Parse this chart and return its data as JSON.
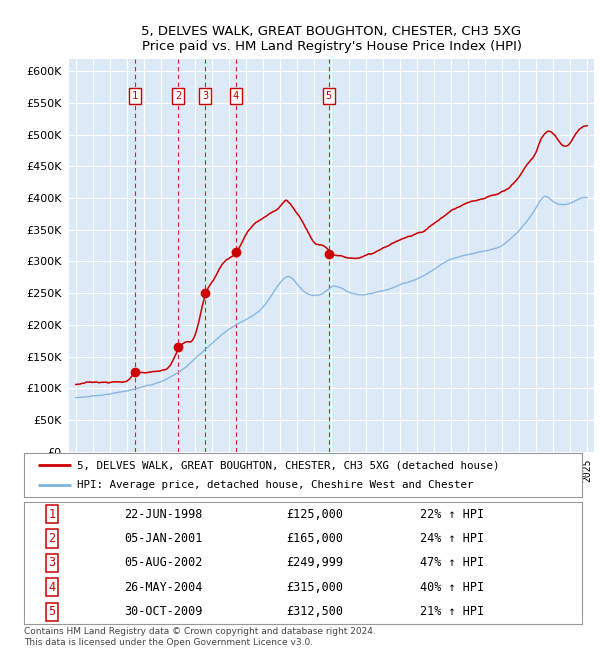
{
  "title": "5, DELVES WALK, GREAT BOUGHTON, CHESTER, CH3 5XG",
  "subtitle": "Price paid vs. HM Land Registry's House Price Index (HPI)",
  "ylim": [
    0,
    620000
  ],
  "yticks": [
    0,
    50000,
    100000,
    150000,
    200000,
    250000,
    300000,
    350000,
    400000,
    450000,
    500000,
    550000,
    600000
  ],
  "xlim_start": 1994.6,
  "xlim_end": 2025.4,
  "plot_bg_color": "#dce9f7",
  "grid_color": "#ffffff",
  "sale_color": "#cc0000",
  "hpi_color": "#7fb3e0",
  "sale_label": "5, DELVES WALK, GREAT BOUGHTON, CHESTER, CH3 5XG (detached house)",
  "hpi_label": "HPI: Average price, detached house, Cheshire West and Chester",
  "footer": "Contains HM Land Registry data © Crown copyright and database right 2024.\nThis data is licensed under the Open Government Licence v3.0.",
  "sales": [
    {
      "num": 1,
      "date": "22-JUN-1998",
      "price": 125000,
      "x_year": 1998.47
    },
    {
      "num": 2,
      "date": "05-JAN-2001",
      "price": 165000,
      "x_year": 2001.01
    },
    {
      "num": 3,
      "date": "05-AUG-2002",
      "price": 249999,
      "x_year": 2002.59
    },
    {
      "num": 4,
      "date": "26-MAY-2004",
      "price": 315000,
      "x_year": 2004.4
    },
    {
      "num": 5,
      "date": "30-OCT-2009",
      "price": 312500,
      "x_year": 2009.83
    }
  ],
  "table_rows": [
    [
      "1",
      "22-JUN-1998",
      "£125,000",
      "22% ↑ HPI"
    ],
    [
      "2",
      "05-JAN-2001",
      "£165,000",
      "24% ↑ HPI"
    ],
    [
      "3",
      "05-AUG-2002",
      "£249,999",
      "47% ↑ HPI"
    ],
    [
      "4",
      "26-MAY-2004",
      "£315,000",
      "40% ↑ HPI"
    ],
    [
      "5",
      "30-OCT-2009",
      "£312,500",
      "21% ↑ HPI"
    ]
  ],
  "hpi_keypoints": [
    [
      1995.0,
      85000
    ],
    [
      1996.0,
      88000
    ],
    [
      1997.0,
      92000
    ],
    [
      1998.0,
      97000
    ],
    [
      1999.0,
      103000
    ],
    [
      2000.0,
      110000
    ],
    [
      2001.0,
      125000
    ],
    [
      2002.0,
      148000
    ],
    [
      2003.0,
      172000
    ],
    [
      2004.0,
      195000
    ],
    [
      2005.0,
      210000
    ],
    [
      2006.0,
      230000
    ],
    [
      2007.0,
      268000
    ],
    [
      2007.5,
      278000
    ],
    [
      2008.0,
      265000
    ],
    [
      2008.5,
      252000
    ],
    [
      2009.0,
      248000
    ],
    [
      2009.5,
      252000
    ],
    [
      2010.0,
      262000
    ],
    [
      2011.0,
      255000
    ],
    [
      2012.0,
      252000
    ],
    [
      2013.0,
      258000
    ],
    [
      2014.0,
      268000
    ],
    [
      2015.0,
      278000
    ],
    [
      2016.0,
      293000
    ],
    [
      2017.0,
      310000
    ],
    [
      2018.0,
      318000
    ],
    [
      2019.0,
      325000
    ],
    [
      2020.0,
      332000
    ],
    [
      2021.0,
      355000
    ],
    [
      2022.0,
      390000
    ],
    [
      2022.5,
      408000
    ],
    [
      2023.0,
      400000
    ],
    [
      2023.5,
      395000
    ],
    [
      2024.0,
      398000
    ],
    [
      2024.5,
      405000
    ],
    [
      2025.0,
      408000
    ]
  ],
  "sale_keypoints": [
    [
      1995.0,
      106000
    ],
    [
      1995.5,
      107000
    ],
    [
      1996.0,
      108500
    ],
    [
      1996.5,
      109500
    ],
    [
      1997.0,
      110000
    ],
    [
      1997.5,
      111000
    ],
    [
      1998.0,
      112000
    ],
    [
      1998.47,
      125000
    ],
    [
      1999.0,
      126000
    ],
    [
      1999.5,
      128000
    ],
    [
      2000.0,
      130000
    ],
    [
      2000.5,
      138000
    ],
    [
      2001.01,
      165000
    ],
    [
      2001.5,
      175000
    ],
    [
      2002.0,
      185000
    ],
    [
      2002.59,
      249999
    ],
    [
      2003.0,
      270000
    ],
    [
      2003.5,
      295000
    ],
    [
      2004.0,
      308000
    ],
    [
      2004.4,
      315000
    ],
    [
      2004.8,
      335000
    ],
    [
      2005.0,
      345000
    ],
    [
      2005.5,
      360000
    ],
    [
      2006.0,
      368000
    ],
    [
      2006.5,
      375000
    ],
    [
      2007.0,
      385000
    ],
    [
      2007.3,
      392000
    ],
    [
      2007.6,
      385000
    ],
    [
      2008.0,
      370000
    ],
    [
      2008.5,
      348000
    ],
    [
      2009.0,
      325000
    ],
    [
      2009.5,
      318000
    ],
    [
      2009.83,
      312500
    ],
    [
      2010.0,
      308000
    ],
    [
      2010.5,
      306000
    ],
    [
      2011.0,
      302000
    ],
    [
      2011.5,
      305000
    ],
    [
      2012.0,
      308000
    ],
    [
      2012.5,
      312000
    ],
    [
      2013.0,
      318000
    ],
    [
      2013.5,
      325000
    ],
    [
      2014.0,
      330000
    ],
    [
      2014.5,
      335000
    ],
    [
      2015.0,
      342000
    ],
    [
      2015.5,
      348000
    ],
    [
      2016.0,
      358000
    ],
    [
      2016.5,
      368000
    ],
    [
      2017.0,
      378000
    ],
    [
      2017.5,
      385000
    ],
    [
      2018.0,
      390000
    ],
    [
      2018.5,
      392000
    ],
    [
      2019.0,
      395000
    ],
    [
      2019.5,
      400000
    ],
    [
      2020.0,
      405000
    ],
    [
      2020.5,
      415000
    ],
    [
      2021.0,
      430000
    ],
    [
      2021.5,
      450000
    ],
    [
      2022.0,
      470000
    ],
    [
      2022.3,
      490000
    ],
    [
      2022.6,
      500000
    ],
    [
      2023.0,
      498000
    ],
    [
      2023.3,
      488000
    ],
    [
      2023.6,
      480000
    ],
    [
      2024.0,
      485000
    ],
    [
      2024.3,
      500000
    ],
    [
      2024.6,
      510000
    ],
    [
      2025.0,
      515000
    ]
  ]
}
